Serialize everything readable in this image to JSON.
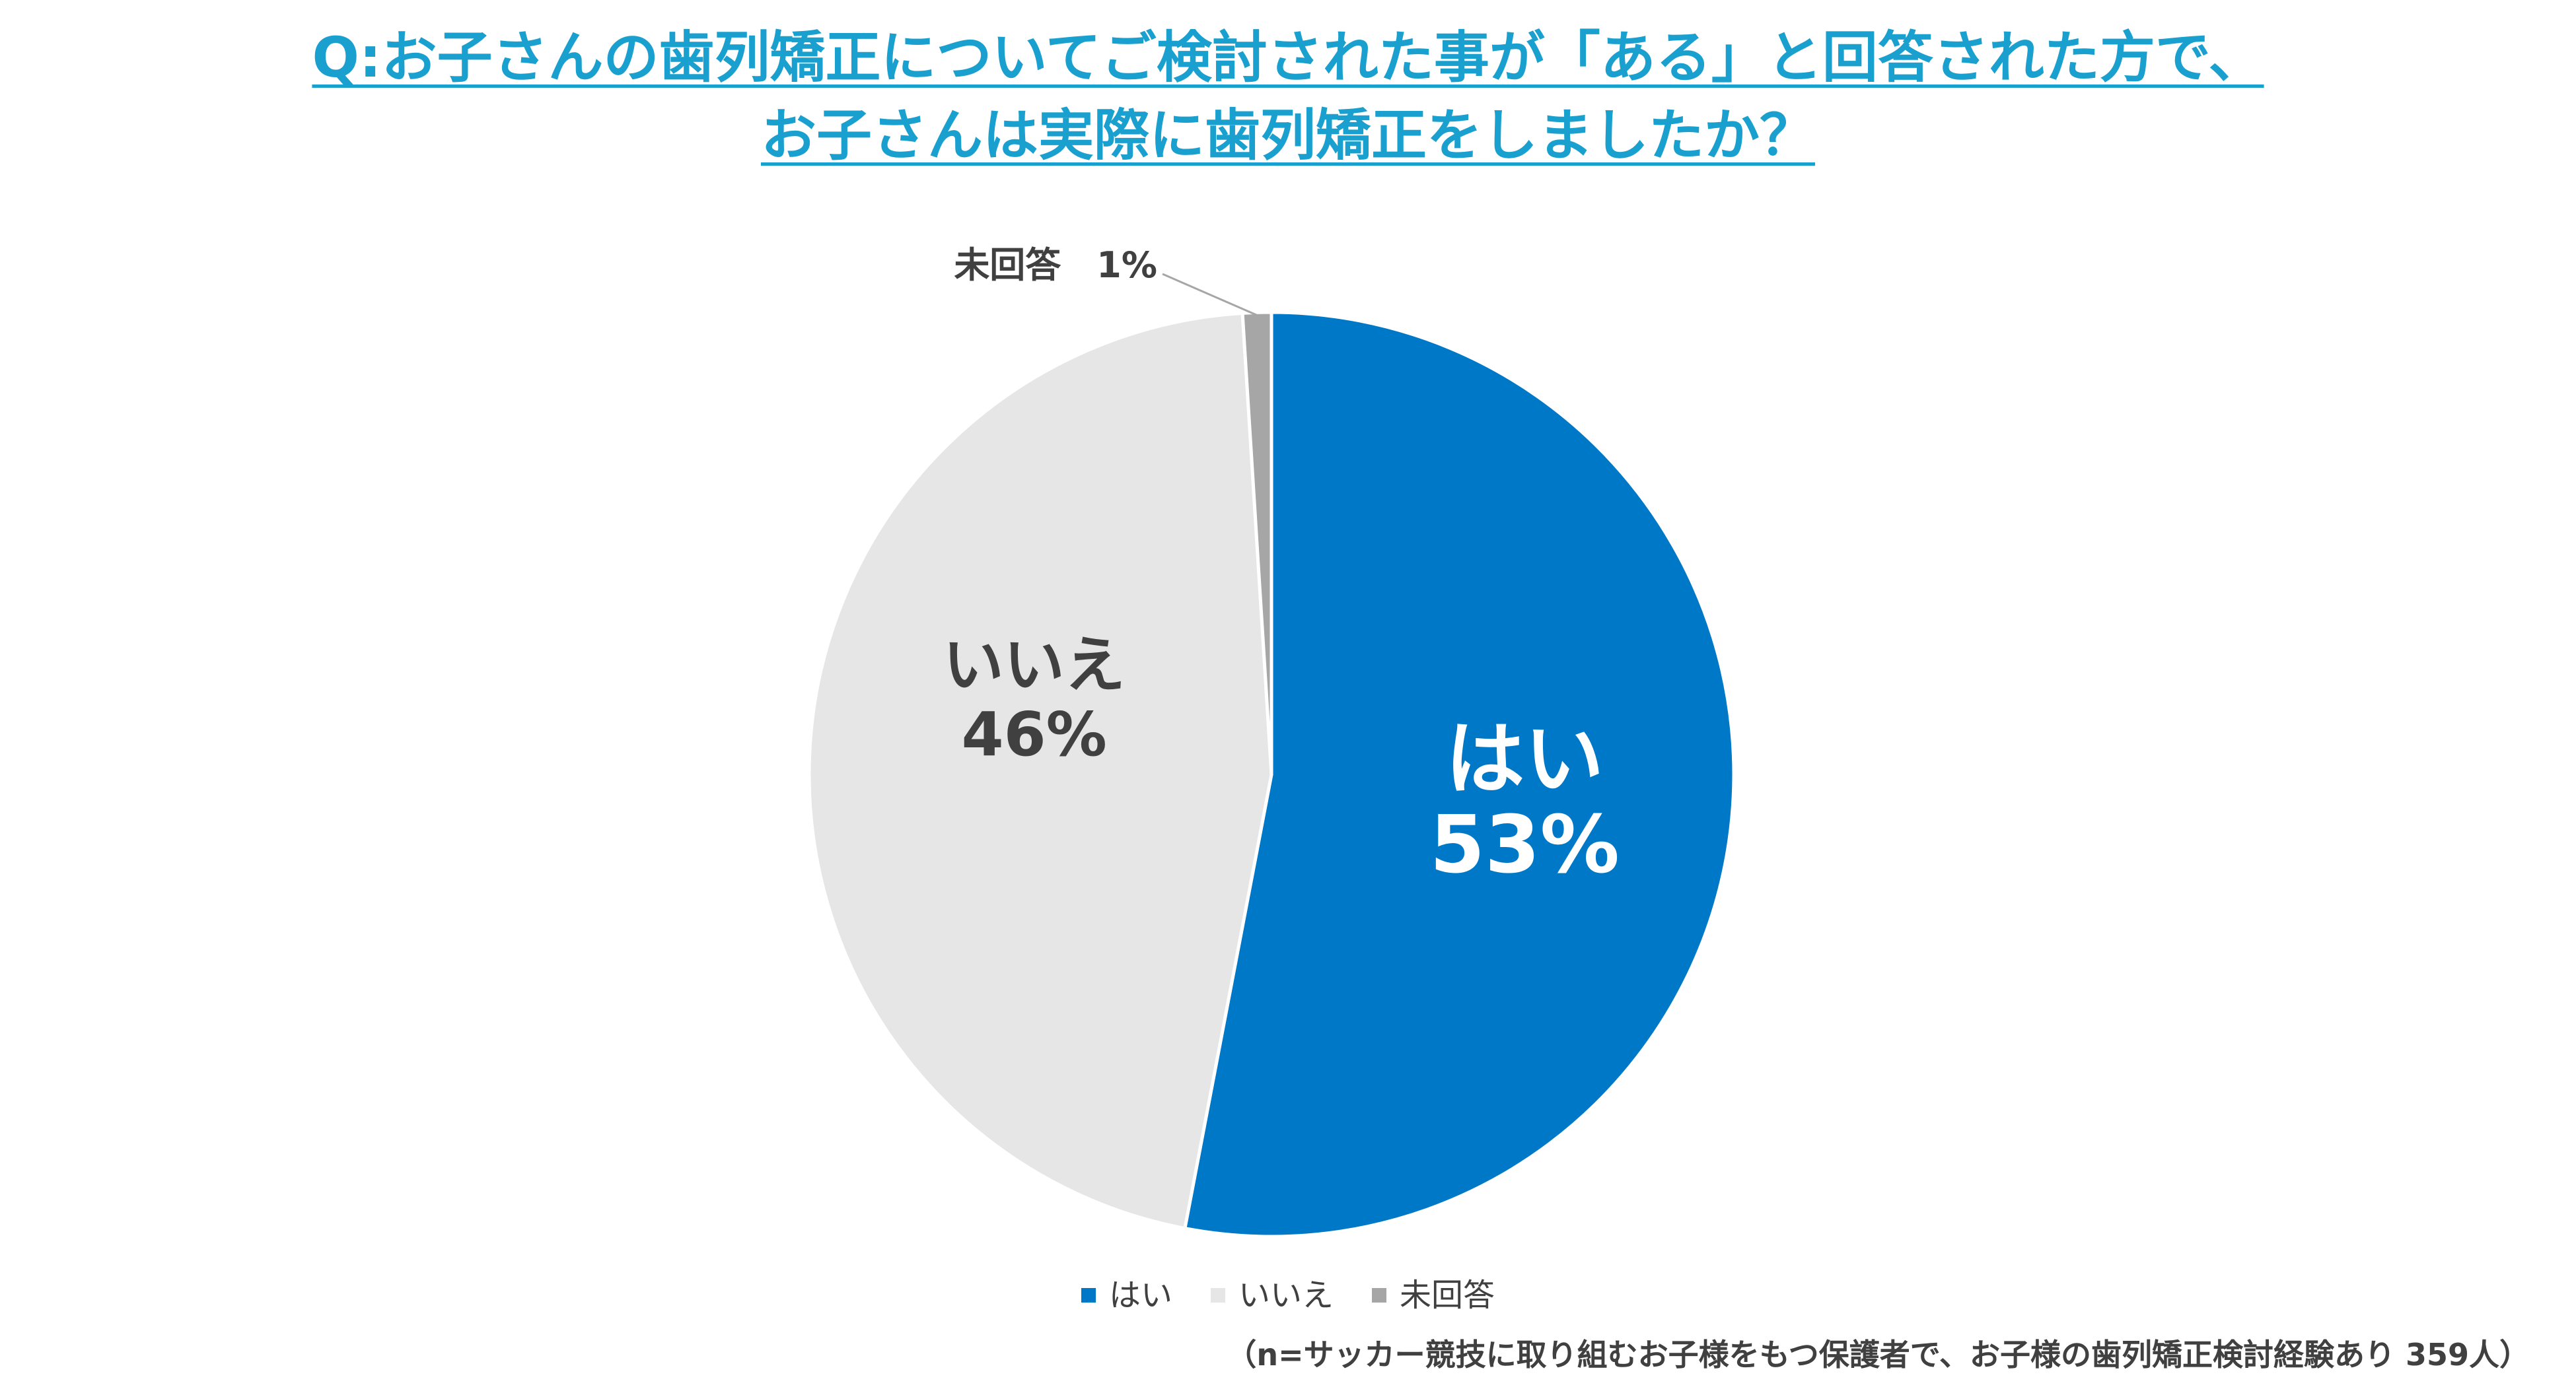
{
  "title": {
    "line1": "Q:お子さんの歯列矯正についてご検討された事が「ある」と回答された方で、",
    "line2": "お子さんは実際に歯列矯正をしましたか？"
  },
  "colors": {
    "title": "#1aa0cf",
    "yes": "#0078c8",
    "no": "#e6e6e6",
    "na": "#a6a6a6",
    "text": "#404040"
  },
  "chart_data": {
    "type": "pie",
    "title": "Q:お子さんの歯列矯正についてご検討された事が「ある」と回答された方で、お子さんは実際に歯列矯正をしましたか？",
    "categories": [
      "はい",
      "いいえ",
      "未回答"
    ],
    "values": [
      53,
      46,
      1
    ],
    "labels": [
      "53%",
      "46%",
      "1%"
    ],
    "na_label": "未回答　1%",
    "legend_position": "bottom"
  },
  "legend": [
    {
      "label": "はい",
      "color": "#0078c8"
    },
    {
      "label": "いいえ",
      "color": "#e6e6e6"
    },
    {
      "label": "未回答",
      "color": "#a6a6a6"
    }
  ],
  "footnote": "（n=サッカー競技に取り組むお子様をもつ保護者で、お子様の歯列矯正検討経験あり 359人）"
}
